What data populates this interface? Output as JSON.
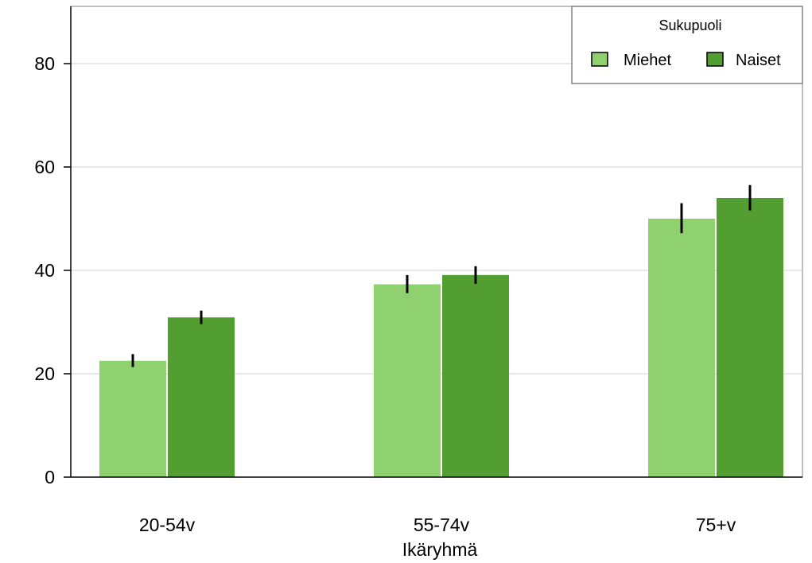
{
  "chart_data": {
    "type": "bar",
    "title": "",
    "xlabel": "Ikäryhmä",
    "ylabel": "",
    "ylim": [
      0,
      90
    ],
    "yticks": [
      0,
      20,
      40,
      60,
      80
    ],
    "grid": true,
    "legend": {
      "title": "Sukupuoli",
      "placement": "top-right"
    },
    "categories": [
      "20-54v",
      "55-74v",
      "75+v"
    ],
    "series": [
      {
        "name": "Miehet",
        "color": "#8fd16f",
        "values": [
          22.5,
          37.3,
          50.0
        ],
        "error_low": [
          21.3,
          35.6,
          47.2
        ],
        "error_high": [
          23.8,
          39.1,
          53.0
        ]
      },
      {
        "name": "Naiset",
        "color": "#529e31",
        "values": [
          30.9,
          39.1,
          54.0
        ],
        "error_low": [
          29.6,
          37.4,
          51.6
        ],
        "error_high": [
          32.2,
          40.8,
          56.5
        ]
      }
    ]
  }
}
